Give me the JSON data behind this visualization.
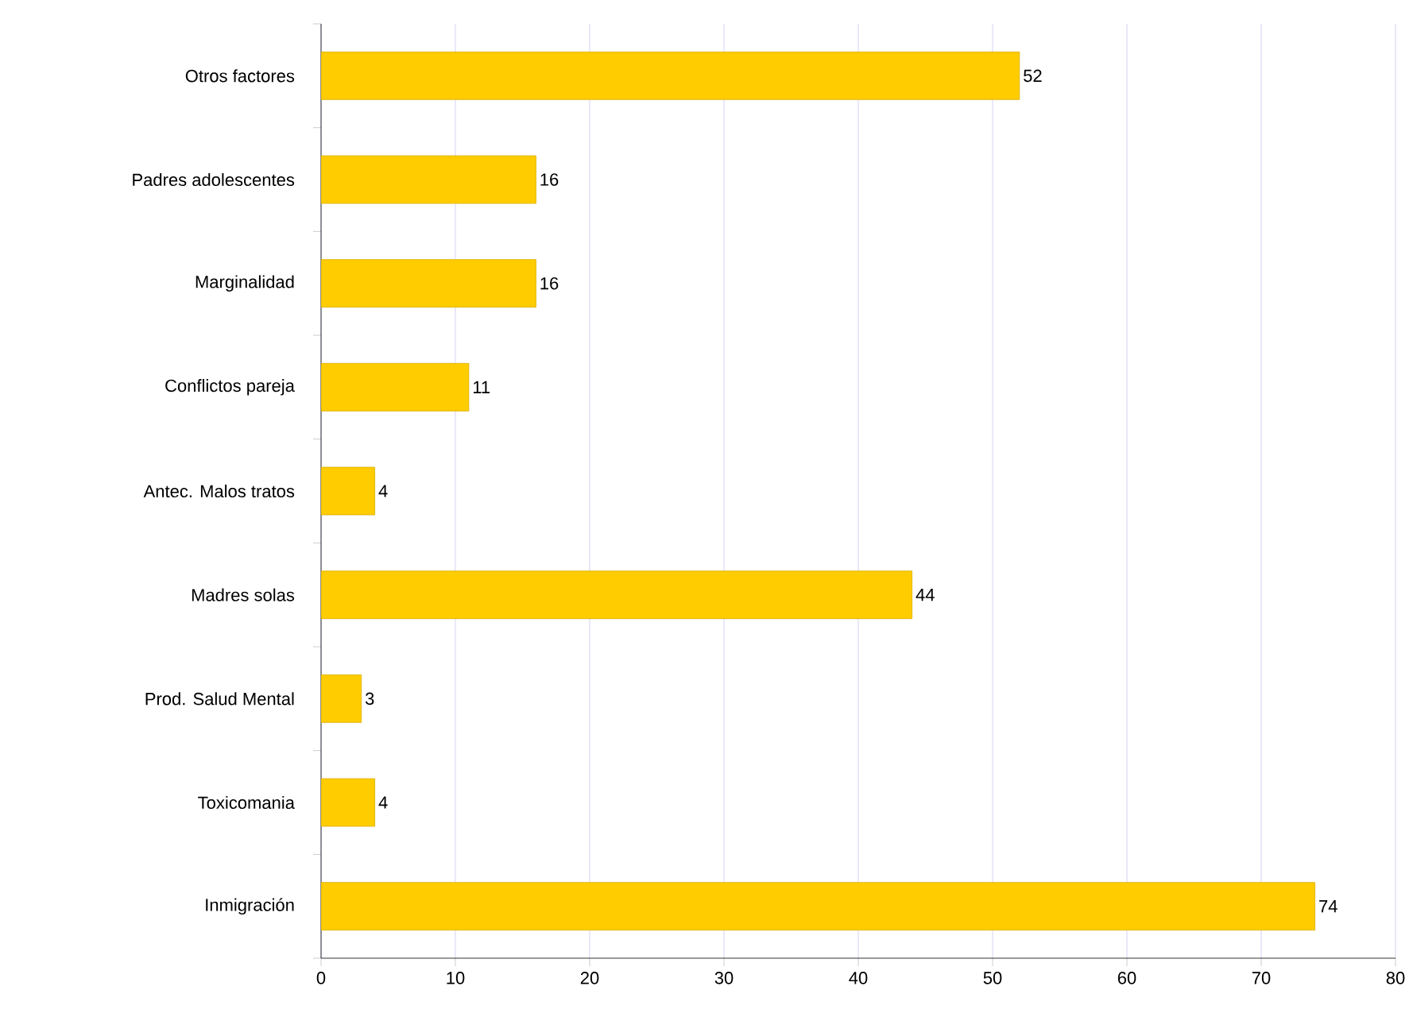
{
  "chart_data": {
    "type": "bar",
    "orientation": "horizontal",
    "categories": [
      "Otros factores",
      "Padres adolescentes",
      "Marginalidad",
      "Conflictos pareja",
      "Antec. Malos tratos",
      "Madres solas",
      "Prod. Salud Mental",
      "Toxicomania",
      "Inmigración"
    ],
    "values": [
      52,
      16,
      16,
      11,
      4,
      44,
      3,
      4,
      74
    ],
    "color": "#ffcc00",
    "xlim": [
      0,
      80
    ],
    "xticks": [
      0,
      10,
      20,
      30,
      40,
      50,
      60,
      70,
      80
    ],
    "grid": "x",
    "data_labels": true
  }
}
